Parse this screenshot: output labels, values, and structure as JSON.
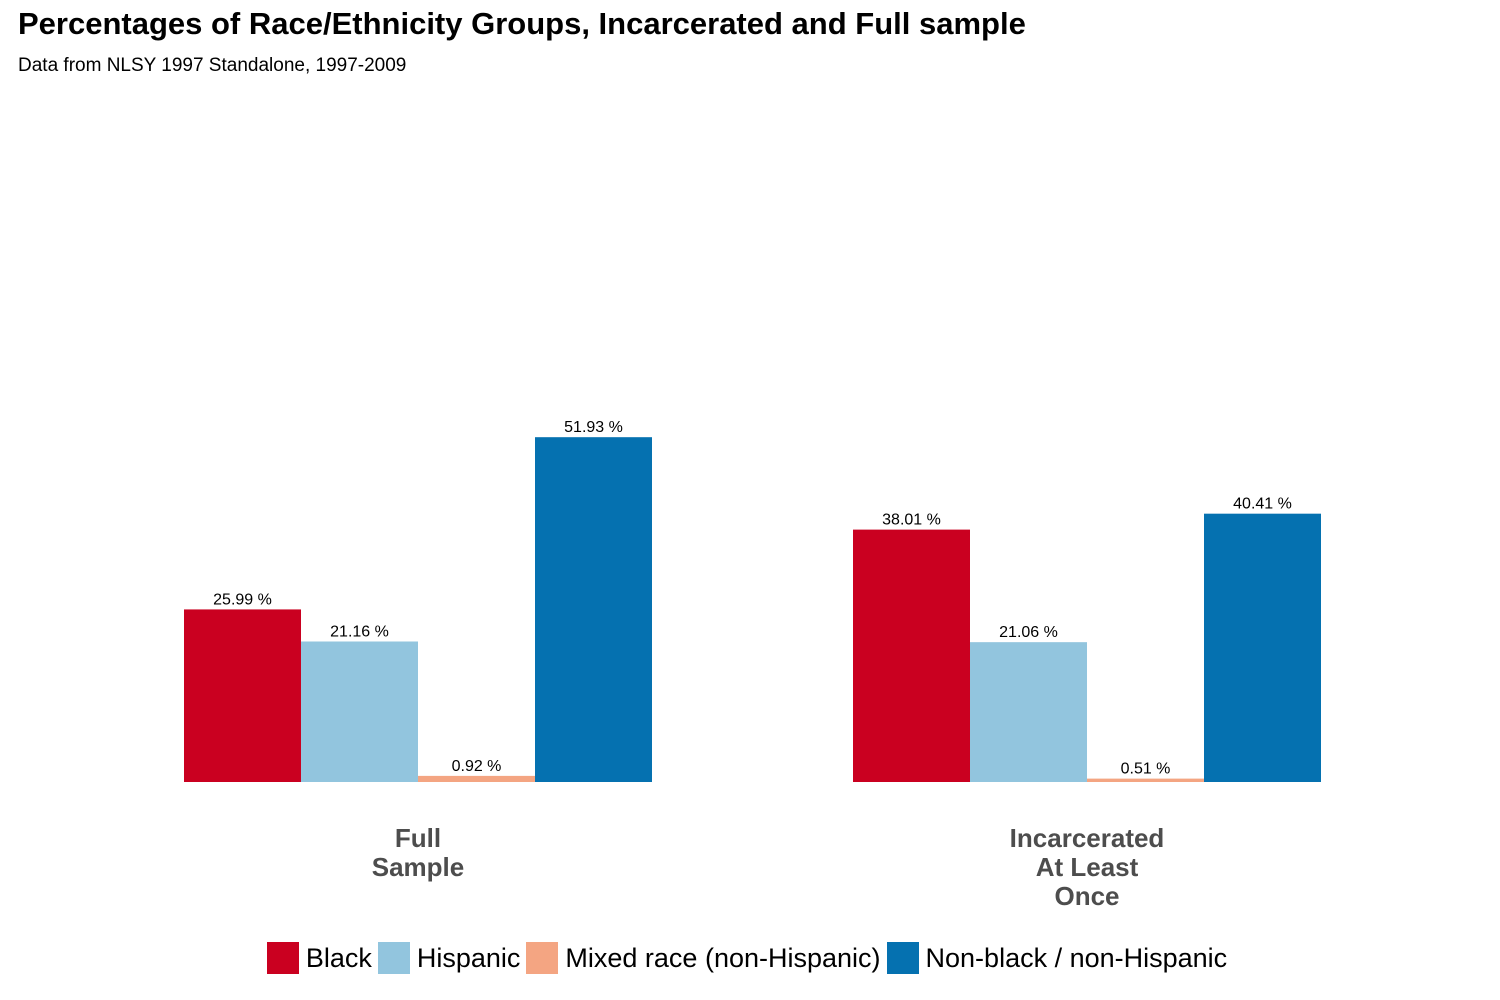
{
  "chart_data": {
    "type": "bar",
    "title": "Percentages of Race/Ethnicity Groups, Incarcerated and Full sample",
    "subtitle": "Data from NLSY 1997 Standalone, 1997-2009",
    "categories": [
      [
        "Full",
        "Sample"
      ],
      [
        "Incarcerated",
        "At Least",
        "Once"
      ]
    ],
    "series": [
      {
        "name": "Black",
        "color": "#CA0020",
        "values": [
          25.99,
          38.01
        ],
        "labels": [
          "25.99 %",
          "38.01 %"
        ]
      },
      {
        "name": "Hispanic",
        "color": "#92C5DE",
        "values": [
          21.16,
          21.06
        ],
        "labels": [
          "21.16 %",
          "21.06 %"
        ]
      },
      {
        "name": "Mixed race (non-Hispanic)",
        "color": "#F4A582",
        "values": [
          0.92,
          0.51
        ],
        "labels": [
          "0.92 %",
          "0.51 %"
        ]
      },
      {
        "name": "Non-black / non-Hispanic",
        "color": "#0571B0",
        "values": [
          51.93,
          40.41
        ],
        "labels": [
          "51.93 %",
          "40.41 %"
        ]
      }
    ],
    "xlabel": "",
    "ylabel": "",
    "ylim": [
      0,
      100
    ],
    "grid": false,
    "legend_position": "bottom"
  }
}
